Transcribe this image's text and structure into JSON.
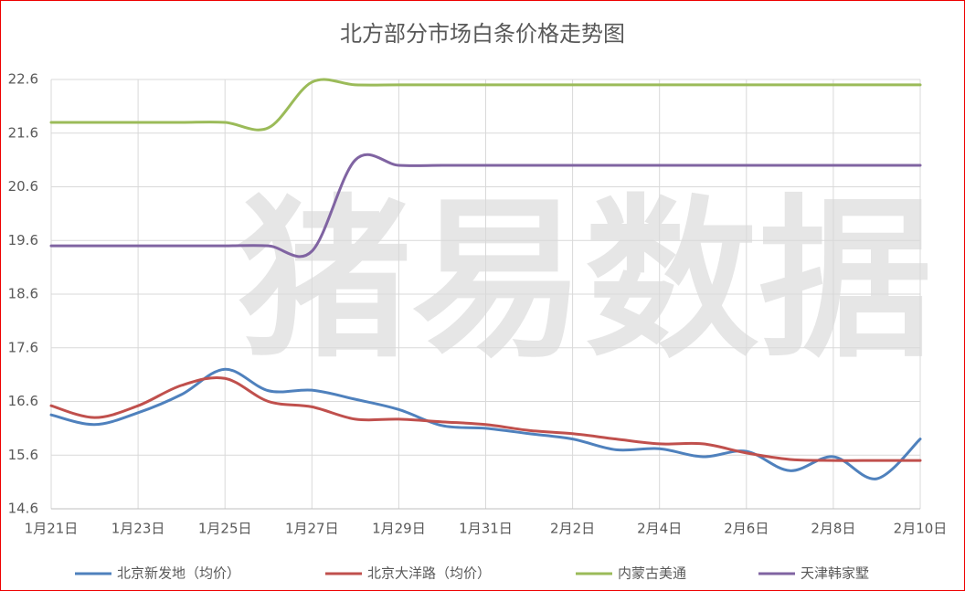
{
  "chart_data": {
    "type": "line",
    "title": "北方部分市场白条价格走势图",
    "watermark": "猪易数据",
    "categories": [
      "1月21日",
      null,
      "1月23日",
      null,
      "1月25日",
      null,
      "1月27日",
      null,
      "1月29日",
      null,
      "1月31日",
      null,
      "2月2日",
      null,
      "2月4日",
      null,
      "2月6日",
      null,
      "2月8日",
      null,
      "2月10日"
    ],
    "series": [
      {
        "name": "北京新发地（均价）",
        "color": "#4f81bd",
        "values": [
          16.35,
          16.17,
          16.39,
          16.73,
          17.2,
          16.8,
          16.81,
          16.64,
          16.45,
          16.15,
          16.1,
          16.0,
          15.9,
          15.7,
          15.72,
          15.57,
          15.67,
          15.31,
          15.57,
          15.16,
          15.9
        ]
      },
      {
        "name": "北京大洋路（均价）",
        "color": "#c0504d",
        "values": [
          16.52,
          16.3,
          16.52,
          16.9,
          17.03,
          16.6,
          16.5,
          16.27,
          16.27,
          16.22,
          16.17,
          16.06,
          16.0,
          15.9,
          15.81,
          15.81,
          15.64,
          15.52,
          15.5,
          15.5,
          15.5
        ]
      },
      {
        "name": "内蒙古美通",
        "color": "#9bbb59",
        "values": [
          21.8,
          21.8,
          21.8,
          21.8,
          21.8,
          21.7,
          22.55,
          22.5,
          22.5,
          22.5,
          22.5,
          22.5,
          22.5,
          22.5,
          22.5,
          22.5,
          22.5,
          22.5,
          22.5,
          22.5,
          22.5
        ]
      },
      {
        "name": "天津韩家墅",
        "color": "#8064a2",
        "values": [
          19.5,
          19.5,
          19.5,
          19.5,
          19.5,
          19.5,
          19.4,
          21.1,
          21.0,
          21.0,
          21.0,
          21.0,
          21.0,
          21.0,
          21.0,
          21.0,
          21.0,
          21.0,
          21.0,
          21.0,
          21.0
        ]
      }
    ],
    "ylim": [
      14.6,
      22.6
    ],
    "yticks": [
      14.6,
      15.6,
      16.6,
      17.6,
      18.6,
      19.6,
      20.6,
      21.6,
      22.6
    ],
    "grid": true,
    "legend": "bottom"
  }
}
